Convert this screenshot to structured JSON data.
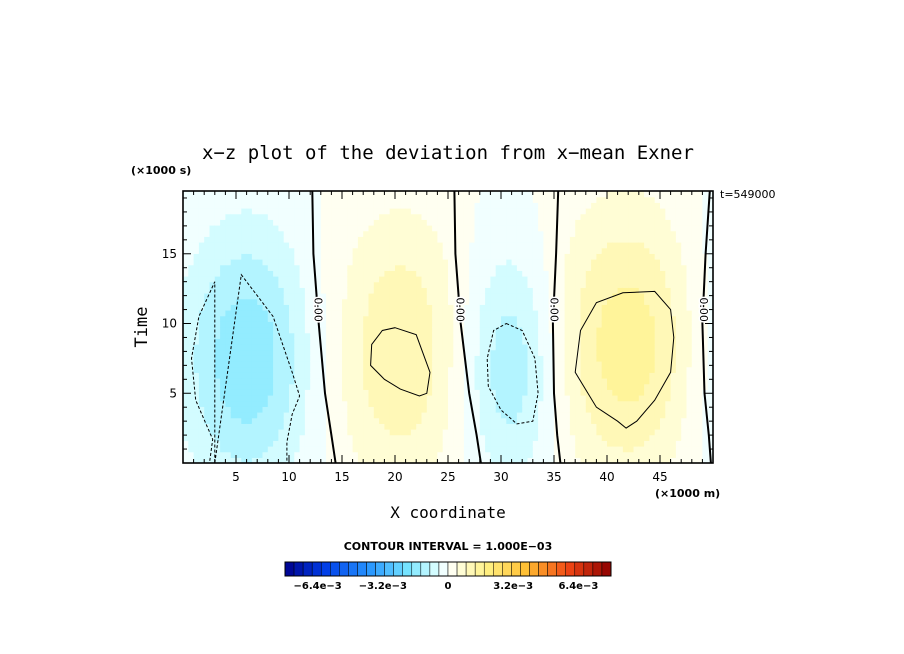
{
  "chart_data": {
    "type": "heatmap",
    "title": "x−z plot of the deviation from x−mean Exner",
    "xlabel": "X coordinate",
    "ylabel": "Time",
    "x_unit": "(×1000 m)",
    "y_unit": "(×1000 s)",
    "time_stamp": "t=549000",
    "xlim": [
      0,
      50
    ],
    "ylim": [
      0,
      19.5
    ],
    "x_ticks": [
      5,
      10,
      15,
      20,
      25,
      30,
      35,
      40,
      45
    ],
    "y_ticks": [
      5,
      10,
      15
    ],
    "contour_interval_text": "CONTOUR INTERVAL = 1.000E−03",
    "zero_contour_label": "0.00",
    "colorbar": {
      "range": [
        -0.008,
        0.008
      ],
      "n_colors": 36,
      "tick_labels": [
        "−6.4e−3",
        "−3.2e−3",
        "0",
        "3.2e−3",
        "6.4e−3"
      ],
      "tick_values": [
        -0.0064,
        -0.0032,
        0,
        0.0032,
        0.0064
      ]
    },
    "anomalies": [
      {
        "x": 6,
        "y": 7.5,
        "sx": 4.2,
        "sy": 6.5,
        "amp": -0.0017
      },
      {
        "x": 20.5,
        "y": 8,
        "sx": 4.5,
        "sy": 7,
        "amp": 0.0013
      },
      {
        "x": 31,
        "y": 7,
        "sx": 3.3,
        "sy": 6,
        "amp": -0.0014
      },
      {
        "x": 42,
        "y": 8.5,
        "sx": 5.5,
        "sy": 7,
        "amp": 0.0016
      },
      {
        "x": 50.5,
        "y": 8,
        "sx": 3,
        "sy": 8,
        "amp": -0.0007
      }
    ],
    "zero_contours": [
      {
        "x": [
          12.2,
          12.3,
          12.8,
          13.4,
          14.0,
          14.4
        ],
        "y": [
          19.5,
          15,
          10,
          5,
          2,
          0
        ]
      },
      {
        "x": [
          25.6,
          25.7,
          26.2,
          27.0,
          27.7,
          28.1
        ],
        "y": [
          19.5,
          15,
          10,
          5,
          2,
          0
        ]
      },
      {
        "x": [
          35.4,
          35.2,
          34.9,
          35.0,
          35.3,
          35.6
        ],
        "y": [
          19.5,
          15,
          10,
          5,
          2,
          0
        ]
      },
      {
        "x": [
          49.7,
          49.3,
          49.0,
          49.2,
          49.6,
          49.8
        ],
        "y": [
          19.5,
          15,
          10,
          5,
          2,
          0
        ]
      }
    ],
    "neg_contours": [
      {
        "x": [
          3.0,
          5.5,
          8.5,
          10.3,
          11.0,
          10.3,
          9.8,
          9.8,
          2.5,
          2.8,
          1.2,
          0.8,
          1.5,
          3.0
        ],
        "y": [
          0.0,
          13.5,
          10.5,
          6.5,
          4.8,
          3.5,
          1.5,
          0.0,
          0.0,
          1.7,
          4.5,
          7.5,
          10.5,
          13.0
        ]
      },
      {
        "x": [
          30.5,
          32.0,
          33.2,
          33.5,
          33.0,
          31.5,
          30.0,
          28.8,
          28.7,
          29.3,
          30.5
        ],
        "y": [
          10.0,
          9.5,
          7.5,
          5.0,
          3.0,
          2.8,
          3.8,
          5.5,
          7.5,
          9.5,
          10.0
        ]
      }
    ],
    "pos_contours": [
      {
        "x": [
          20.0,
          22.0,
          23.3,
          23.0,
          22.3,
          20.5,
          19.0,
          17.7,
          17.8,
          18.8,
          20.0
        ],
        "y": [
          9.7,
          9.2,
          6.5,
          5.0,
          4.8,
          5.3,
          6.0,
          7.0,
          8.5,
          9.5,
          9.7
        ]
      },
      {
        "x": [
          41.5,
          44.5,
          46.0,
          46.3,
          46.0,
          44.5,
          42.8,
          41.8,
          41.0,
          39.0,
          37.0,
          37.5,
          39.0,
          41.5
        ],
        "y": [
          12.2,
          12.3,
          11.0,
          9.0,
          6.5,
          4.5,
          3.0,
          2.5,
          3.0,
          4.0,
          6.5,
          9.5,
          11.5,
          12.2
        ]
      }
    ]
  }
}
